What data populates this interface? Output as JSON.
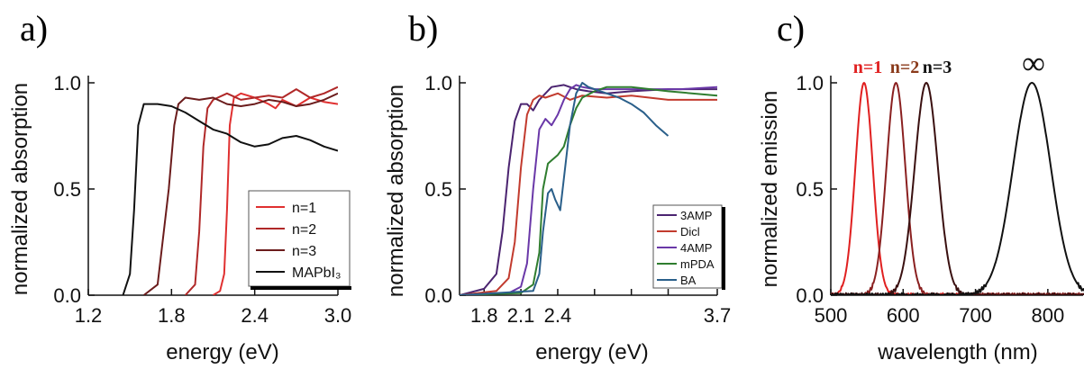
{
  "chart_data": [
    {
      "panel": "a)",
      "type": "line",
      "xlabel": "energy (eV)",
      "ylabel": "normalized absorption",
      "xlim": [
        1.2,
        3.0
      ],
      "ylim": [
        0,
        1.0
      ],
      "xticks": [
        "1.2",
        "1.8",
        "2.4",
        "3.0"
      ],
      "yticks": [
        "0.0",
        "0.5",
        "1.0"
      ],
      "legend_position": "bottom-right",
      "series": [
        {
          "name": "n=1",
          "color": "#e03030",
          "x": [
            2.1,
            2.15,
            2.18,
            2.2,
            2.22,
            2.25,
            2.3,
            2.4,
            2.5,
            2.55,
            2.6,
            2.7,
            2.8,
            2.9,
            3.0
          ],
          "y": [
            0.0,
            0.02,
            0.1,
            0.4,
            0.8,
            0.93,
            0.95,
            0.93,
            0.9,
            0.88,
            0.92,
            0.89,
            0.93,
            0.91,
            0.9
          ]
        },
        {
          "name": "n=2",
          "color": "#b02828",
          "x": [
            1.9,
            1.97,
            2.0,
            2.03,
            2.06,
            2.1,
            2.2,
            2.3,
            2.4,
            2.5,
            2.6,
            2.7,
            2.8,
            2.9,
            3.0
          ],
          "y": [
            0.0,
            0.05,
            0.3,
            0.7,
            0.88,
            0.92,
            0.95,
            0.92,
            0.93,
            0.94,
            0.93,
            0.97,
            0.93,
            0.95,
            0.98
          ]
        },
        {
          "name": "n=3",
          "color": "#6b1c1c",
          "x": [
            1.6,
            1.7,
            1.78,
            1.82,
            1.85,
            1.9,
            2.0,
            2.1,
            2.2,
            2.3,
            2.4,
            2.5,
            2.6,
            2.7,
            2.8,
            2.9,
            3.0
          ],
          "y": [
            0.0,
            0.05,
            0.5,
            0.8,
            0.9,
            0.93,
            0.92,
            0.93,
            0.9,
            0.89,
            0.9,
            0.92,
            0.91,
            0.89,
            0.9,
            0.92,
            0.95
          ]
        },
        {
          "name": "MAPbI₃",
          "color": "#111111",
          "x": [
            1.45,
            1.5,
            1.53,
            1.56,
            1.6,
            1.65,
            1.7,
            1.8,
            1.9,
            2.0,
            2.1,
            2.2,
            2.3,
            2.4,
            2.5,
            2.6,
            2.7,
            2.8,
            2.9,
            3.0
          ],
          "y": [
            0.0,
            0.1,
            0.4,
            0.8,
            0.9,
            0.9,
            0.9,
            0.89,
            0.86,
            0.82,
            0.78,
            0.76,
            0.72,
            0.7,
            0.71,
            0.74,
            0.75,
            0.73,
            0.7,
            0.68
          ]
        }
      ]
    },
    {
      "panel": "b)",
      "type": "line",
      "xlabel": "energy (eV)",
      "ylabel": "normalized absorption",
      "xlim": [
        1.6,
        3.7
      ],
      "ylim": [
        0,
        1.0
      ],
      "xticks": [
        "1.8",
        "2.1",
        "2.4",
        "2.7",
        "3.0",
        "3.3",
        "3.7"
      ],
      "yticks": [
        "0.0",
        "0.5",
        "1.0"
      ],
      "xticks_visible": [
        "1.8",
        "2.1",
        "2.4",
        "3.7"
      ],
      "legend_position": "bottom-right",
      "series": [
        {
          "name": "3AMP",
          "color": "#4b2470",
          "x": [
            1.6,
            1.8,
            1.9,
            1.95,
            2.0,
            2.05,
            2.1,
            2.15,
            2.2,
            2.25,
            2.35,
            2.45,
            2.55,
            2.65,
            2.8,
            3.0,
            3.3,
            3.7
          ],
          "y": [
            0.0,
            0.03,
            0.1,
            0.3,
            0.6,
            0.82,
            0.9,
            0.9,
            0.87,
            0.92,
            0.98,
            0.99,
            0.97,
            0.96,
            0.95,
            0.96,
            0.97,
            0.97
          ]
        },
        {
          "name": "Dicl",
          "color": "#c23b2e",
          "x": [
            1.6,
            1.9,
            2.0,
            2.05,
            2.1,
            2.15,
            2.2,
            2.25,
            2.3,
            2.4,
            2.5,
            2.6,
            2.8,
            3.0,
            3.3,
            3.7
          ],
          "y": [
            0.0,
            0.02,
            0.08,
            0.25,
            0.6,
            0.85,
            0.92,
            0.94,
            0.93,
            0.95,
            0.92,
            0.94,
            0.93,
            0.94,
            0.92,
            0.92
          ]
        },
        {
          "name": "4AMP",
          "color": "#6a38a8",
          "x": [
            1.6,
            2.0,
            2.1,
            2.15,
            2.2,
            2.25,
            2.3,
            2.35,
            2.4,
            2.45,
            2.5,
            2.55,
            2.6,
            2.7,
            2.9,
            3.1,
            3.4,
            3.7
          ],
          "y": [
            0.0,
            0.01,
            0.04,
            0.15,
            0.5,
            0.78,
            0.83,
            0.8,
            0.85,
            0.92,
            0.97,
            0.99,
            0.98,
            0.97,
            0.97,
            0.97,
            0.97,
            0.98
          ]
        },
        {
          "name": "mPDA",
          "color": "#2f7d2f",
          "x": [
            1.6,
            2.1,
            2.2,
            2.25,
            2.28,
            2.32,
            2.36,
            2.4,
            2.45,
            2.5,
            2.55,
            2.6,
            2.7,
            2.8,
            3.0,
            3.3,
            3.7
          ],
          "y": [
            0.0,
            0.01,
            0.05,
            0.2,
            0.5,
            0.62,
            0.64,
            0.66,
            0.7,
            0.8,
            0.88,
            0.93,
            0.96,
            0.98,
            0.98,
            0.96,
            0.94
          ]
        },
        {
          "name": "BA",
          "color": "#2a5f8a",
          "x": [
            1.6,
            2.2,
            2.25,
            2.28,
            2.32,
            2.35,
            2.38,
            2.42,
            2.45,
            2.5,
            2.55,
            2.6,
            2.65,
            2.7,
            2.8,
            2.9,
            3.0,
            3.1,
            3.2,
            3.3
          ],
          "y": [
            0.0,
            0.02,
            0.1,
            0.3,
            0.48,
            0.5,
            0.45,
            0.4,
            0.55,
            0.8,
            0.95,
            1.0,
            0.98,
            0.97,
            0.95,
            0.93,
            0.9,
            0.86,
            0.8,
            0.75
          ]
        }
      ]
    },
    {
      "panel": "c)",
      "type": "line",
      "xlabel": "wavelength (nm)",
      "ylabel": "normalized emission",
      "xlim": [
        500,
        850
      ],
      "ylim": [
        0,
        1.0
      ],
      "xticks": [
        "500",
        "600",
        "700",
        "800"
      ],
      "yticks": [
        "0.0",
        "0.5",
        "1.0"
      ],
      "peak_labels": [
        {
          "text": "n=1",
          "color": "#e02020"
        },
        {
          "text": "n=2",
          "color": "#8a3a1a"
        },
        {
          "text": "n=3",
          "color": "#111111"
        },
        {
          "text": "∞",
          "color": "#111111"
        }
      ],
      "series": [
        {
          "name": "n=1",
          "color": "#e02020",
          "peak": 546,
          "width": 12
        },
        {
          "name": "n=2",
          "color": "#8a2020",
          "peak": 590,
          "width": 13
        },
        {
          "name": "n=3",
          "color": "#3a1010",
          "peak": 632,
          "width": 16
        },
        {
          "name": "∞",
          "color": "#111111",
          "peak": 778,
          "width": 26
        }
      ]
    }
  ]
}
